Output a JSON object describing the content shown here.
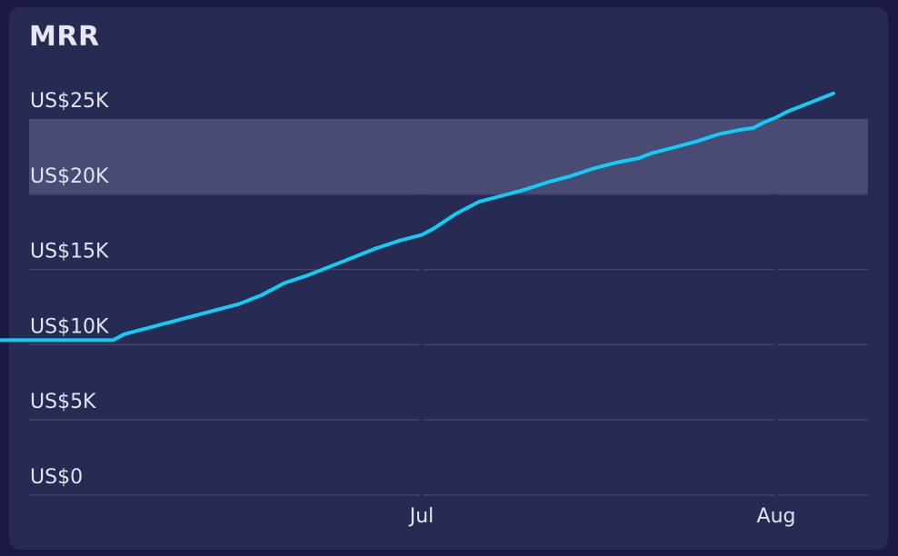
{
  "title": "MRR",
  "colors": {
    "background": "#1c1a44",
    "card": "#272a52",
    "line": "#10cdf6",
    "grid": "#42456a",
    "band": "#4a4b74",
    "text": "#e2e3f0"
  },
  "chart_data": {
    "type": "line",
    "title": "MRR",
    "xlabel": "",
    "ylabel": "",
    "ylim": [
      0,
      25000
    ],
    "grid": true,
    "y_ticks": [
      0,
      5000,
      10000,
      15000,
      20000,
      25000
    ],
    "y_tick_labels": [
      "US$0",
      "US$5K",
      "US$10K",
      "US$15K",
      "US$20K",
      "US$25K"
    ],
    "x_tick_labels": [
      "Jul",
      "Aug"
    ],
    "x_tick_dates": [
      "2024-07-01",
      "2024-08-01"
    ],
    "highlight_band": {
      "y_from": 20000,
      "y_to": 25000
    },
    "series": [
      {
        "x": [
          "2024-05-23",
          "2024-06-04",
          "2024-06-05",
          "2024-06-07",
          "2024-06-09",
          "2024-06-11",
          "2024-06-13",
          "2024-06-15",
          "2024-06-17",
          "2024-06-19",
          "2024-06-21",
          "2024-06-23",
          "2024-06-25",
          "2024-06-27",
          "2024-06-29",
          "2024-07-01",
          "2024-07-02",
          "2024-07-03",
          "2024-07-04",
          "2024-07-05",
          "2024-07-06",
          "2024-07-08",
          "2024-07-10",
          "2024-07-12",
          "2024-07-14",
          "2024-07-16",
          "2024-07-18",
          "2024-07-20",
          "2024-07-21",
          "2024-07-23",
          "2024-07-25",
          "2024-07-27",
          "2024-07-29",
          "2024-07-30",
          "2024-07-31",
          "2024-08-01",
          "2024-08-02",
          "2024-08-03",
          "2024-08-04",
          "2024-08-05",
          "2024-08-06"
        ],
        "values": [
          10300,
          10300,
          10700,
          11100,
          11500,
          11900,
          12300,
          12700,
          13300,
          14100,
          14600,
          15200,
          15800,
          16400,
          16900,
          17300,
          17700,
          18200,
          18700,
          19100,
          19500,
          19900,
          20300,
          20800,
          21200,
          21700,
          22100,
          22400,
          22700,
          23100,
          23500,
          24000,
          24300,
          24400,
          24800,
          25100,
          25500,
          25800,
          26100,
          26400,
          26700
        ]
      }
    ]
  }
}
